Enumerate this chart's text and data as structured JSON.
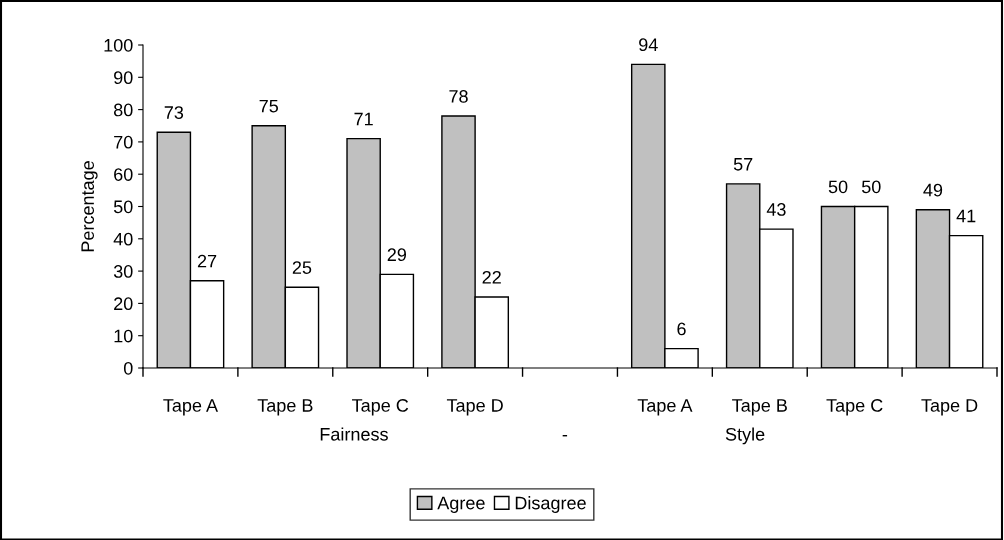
{
  "chart_data": {
    "type": "bar",
    "ylabel": "Percentage",
    "categories": [
      "Tape A",
      "Tape B",
      "Tape C",
      "Tape D",
      null,
      "Tape A",
      "Tape B",
      "Tape C",
      "Tape D"
    ],
    "series": [
      {
        "name": "Agree",
        "color": "#c0c0c0",
        "values": [
          73,
          75,
          71,
          78,
          null,
          94,
          57,
          50,
          49
        ]
      },
      {
        "name": "Disagree",
        "color": "#ffffff",
        "values": [
          27,
          25,
          29,
          22,
          null,
          6,
          43,
          50,
          41
        ]
      }
    ],
    "annotations": [
      "Fairness",
      "-",
      "Style"
    ],
    "ylim": [
      0,
      100
    ],
    "yticks": [
      0,
      10,
      20,
      30,
      40,
      50,
      60,
      70,
      80,
      90,
      100
    ],
    "data_labels": true,
    "legend": "bottom",
    "grid": false
  }
}
